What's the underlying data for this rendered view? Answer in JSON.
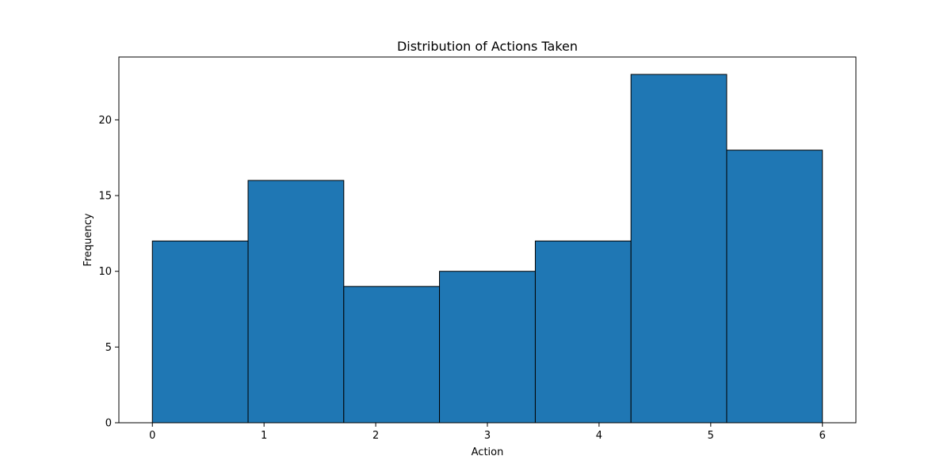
{
  "chart_data": {
    "type": "bar",
    "title": "Distribution of Actions Taken",
    "xlabel": "Action",
    "ylabel": "Frequency",
    "bin_edges": [
      0,
      0.857,
      1.714,
      2.571,
      3.429,
      4.286,
      5.143,
      6
    ],
    "values": [
      12,
      16,
      9,
      10,
      12,
      23,
      18
    ],
    "xlim": [
      -0.3,
      6.3
    ],
    "ylim": [
      0,
      24.15
    ],
    "xticks": [
      0,
      1,
      2,
      3,
      4,
      5,
      6
    ],
    "yticks": [
      0,
      5,
      10,
      15,
      20
    ],
    "bar_color": "#1f77b4",
    "edge_color": "#000000",
    "grid": false
  }
}
